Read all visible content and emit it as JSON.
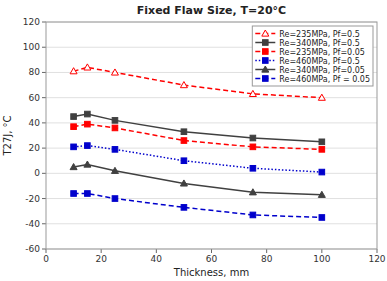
{
  "chart_data": {
    "type": "line",
    "title": "Fixed Flaw Size, T=20°C",
    "x_label": "Thickness, mm",
    "y_label": "T27J, °C",
    "x": [
      10,
      15,
      25,
      50,
      75,
      100
    ],
    "xlim": [
      0,
      120
    ],
    "ylim": [
      -60,
      120
    ],
    "xticks": [
      0,
      20,
      40,
      60,
      80,
      100,
      120
    ],
    "yticks": [
      -60,
      -40,
      -20,
      0,
      20,
      40,
      60,
      80,
      100,
      120
    ],
    "grid": "y",
    "legend": "upper right",
    "series": [
      {
        "name": "Re=235MPa, Pf=0.5",
        "color": "#ff0000",
        "line_style": "dashed",
        "marker": "open-triangle",
        "values": [
          81,
          84,
          80,
          70,
          63,
          60
        ]
      },
      {
        "name": "Re=340MPa, Pf=0.5",
        "color": "#404040",
        "line_style": "solid",
        "marker": "square",
        "values": [
          45,
          47,
          42,
          33,
          28,
          25
        ]
      },
      {
        "name": "Re=235MPa, Pf=0.05",
        "color": "#ff0000",
        "line_style": "dashed",
        "marker": "square",
        "values": [
          37,
          39,
          36,
          26,
          21,
          19
        ]
      },
      {
        "name": "Re=460MPa, Pf=0.5",
        "color": "#0000cc",
        "line_style": "dotted",
        "marker": "square",
        "values": [
          21,
          22,
          19,
          10,
          4,
          1
        ]
      },
      {
        "name": "Re=340MPa, Pf=0.05",
        "color": "#404040",
        "line_style": "solid",
        "marker": "triangle",
        "values": [
          5,
          7,
          2,
          -8,
          -15,
          -17
        ]
      },
      {
        "name": "Re=460MPa, Pf = 0.05",
        "color": "#0000cc",
        "line_style": "dashed",
        "marker": "square",
        "values": [
          -16,
          -16,
          -20,
          -27,
          -33,
          -35
        ]
      }
    ]
  }
}
